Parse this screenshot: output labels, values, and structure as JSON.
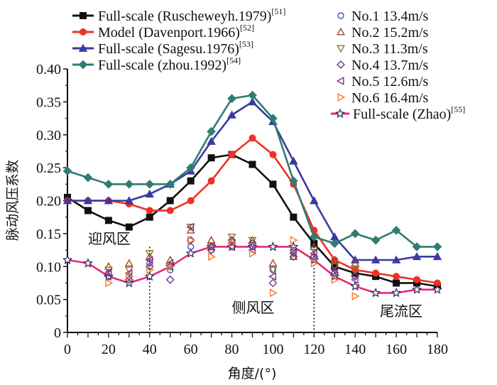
{
  "chart_data": {
    "type": "line",
    "title": "",
    "xlabel": "角度/(°)",
    "ylabel": "脉动风压系数",
    "xlim": [
      0,
      180
    ],
    "ylim": [
      0,
      0.4
    ],
    "xticks": [
      0,
      20,
      40,
      60,
      80,
      100,
      120,
      140,
      160,
      180
    ],
    "xtick_labels": [
      "0",
      "20",
      "40",
      "60",
      "80",
      "100",
      "120",
      "140",
      "160",
      "180"
    ],
    "yticks": [
      0,
      0.05,
      0.1,
      0.15,
      0.2,
      0.25,
      0.3,
      0.35,
      0.4
    ],
    "ytick_labels": [
      "0",
      "0.05",
      "0.10",
      "0.15",
      "0.20",
      "0.25",
      "0.30",
      "0.35",
      "0.40"
    ],
    "grid": false,
    "x": [
      0,
      10,
      20,
      30,
      40,
      50,
      60,
      70,
      80,
      90,
      100,
      110,
      120,
      130,
      140,
      150,
      160,
      170,
      180
    ],
    "series": [
      {
        "name": "Full-scale (Ruscheweyh.1979)",
        "ref": "[51]",
        "color": "#111111",
        "marker": "square",
        "values": [
          0.205,
          0.185,
          0.17,
          0.16,
          0.175,
          0.2,
          0.23,
          0.265,
          0.27,
          0.255,
          0.225,
          0.175,
          0.135,
          0.1,
          0.09,
          0.085,
          0.075,
          0.075,
          0.07
        ]
      },
      {
        "name": "Model (Davenport.1966)",
        "ref": "[52]",
        "color": "#ee3124",
        "marker": "circle",
        "values": [
          0.2,
          0.2,
          0.2,
          0.195,
          0.185,
          0.185,
          0.2,
          0.23,
          0.27,
          0.295,
          0.27,
          0.225,
          0.155,
          0.11,
          0.095,
          0.09,
          0.085,
          0.08,
          0.075
        ]
      },
      {
        "name": "Full-scale (Sagesu.1976)",
        "ref": "[53]",
        "color": "#3a3aa0",
        "marker": "triangle-up",
        "values": [
          0.2,
          0.2,
          0.2,
          0.2,
          0.21,
          0.225,
          0.245,
          0.29,
          0.33,
          0.35,
          0.32,
          0.26,
          0.2,
          0.145,
          0.11,
          0.11,
          0.11,
          0.115,
          0.115
        ]
      },
      {
        "name": "Full-scale (zhou.1992)",
        "ref": "[54]",
        "color": "#2e7d72",
        "marker": "diamond",
        "values": [
          0.245,
          0.235,
          0.225,
          0.225,
          0.225,
          0.225,
          0.25,
          0.305,
          0.355,
          0.36,
          0.325,
          0.23,
          0.145,
          0.135,
          0.15,
          0.14,
          0.155,
          0.13,
          0.13
        ]
      },
      {
        "name": "Full-scale (Zhao)",
        "ref": "[55]",
        "color": "#e8287a",
        "marker": "star",
        "values": [
          0.11,
          0.105,
          0.085,
          0.075,
          0.085,
          0.1,
          0.12,
          0.13,
          0.13,
          0.13,
          0.13,
          0.13,
          0.11,
          0.085,
          0.07,
          0.06,
          0.06,
          0.065,
          0.065
        ]
      }
    ],
    "scatter_series": [
      {
        "name": "No.1 13.4m/s",
        "color": "#4a4ac0",
        "marker": "circle-open",
        "points": [
          [
            20,
            0.09
          ],
          [
            30,
            0.085
          ],
          [
            40,
            0.105
          ],
          [
            50,
            0.095
          ],
          [
            60,
            0.13
          ],
          [
            70,
            0.125
          ],
          [
            80,
            0.13
          ],
          [
            90,
            0.13
          ],
          [
            100,
            0.095
          ],
          [
            110,
            0.125
          ],
          [
            120,
            0.115
          ],
          [
            130,
            0.09
          ],
          [
            140,
            0.085
          ]
        ]
      },
      {
        "name": "No.2 15.2m/s",
        "color": "#a0462a",
        "marker": "triangle-up-open",
        "points": [
          [
            20,
            0.1
          ],
          [
            30,
            0.105
          ],
          [
            40,
            0.115
          ],
          [
            50,
            0.11
          ],
          [
            60,
            0.155
          ],
          [
            70,
            0.14
          ],
          [
            80,
            0.14
          ],
          [
            90,
            0.14
          ],
          [
            100,
            0.105
          ],
          [
            110,
            0.115
          ],
          [
            120,
            0.13
          ],
          [
            130,
            0.11
          ],
          [
            140,
            0.105
          ]
        ]
      },
      {
        "name": "No.3 11.3m/s",
        "color": "#8a7a2a",
        "marker": "triangle-down-open",
        "points": [
          [
            20,
            0.095
          ],
          [
            30,
            0.095
          ],
          [
            40,
            0.12
          ],
          [
            50,
            0.1
          ],
          [
            60,
            0.16
          ],
          [
            70,
            0.13
          ],
          [
            80,
            0.145
          ],
          [
            90,
            0.14
          ],
          [
            100,
            0.095
          ],
          [
            110,
            0.12
          ],
          [
            120,
            0.125
          ],
          [
            130,
            0.1
          ],
          [
            140,
            0.095
          ]
        ]
      },
      {
        "name": "No.4 13.7m/s",
        "color": "#6a3a8a",
        "marker": "diamond-open",
        "points": [
          [
            20,
            0.085
          ],
          [
            30,
            0.08
          ],
          [
            40,
            0.1
          ],
          [
            50,
            0.08
          ],
          [
            60,
            0.14
          ],
          [
            70,
            0.125
          ],
          [
            80,
            0.14
          ],
          [
            90,
            0.135
          ],
          [
            100,
            0.075
          ],
          [
            110,
            0.115
          ],
          [
            120,
            0.115
          ],
          [
            130,
            0.09
          ],
          [
            140,
            0.085
          ]
        ]
      },
      {
        "name": "No.5 12.6m/s",
        "color": "#8a2a8a",
        "marker": "triangle-left-open",
        "points": [
          [
            20,
            0.09
          ],
          [
            30,
            0.09
          ],
          [
            40,
            0.11
          ],
          [
            50,
            0.105
          ],
          [
            60,
            0.16
          ],
          [
            70,
            0.13
          ],
          [
            80,
            0.13
          ],
          [
            90,
            0.125
          ],
          [
            100,
            0.085
          ],
          [
            110,
            0.12
          ],
          [
            120,
            0.12
          ],
          [
            130,
            0.095
          ],
          [
            140,
            0.08
          ]
        ]
      },
      {
        "name": "No.6 16.4m/s",
        "color": "#f07a2a",
        "marker": "triangle-right-open",
        "points": [
          [
            20,
            0.075
          ],
          [
            30,
            0.085
          ],
          [
            40,
            0.095
          ],
          [
            50,
            0.1
          ],
          [
            60,
            0.14
          ],
          [
            70,
            0.115
          ],
          [
            80,
            0.135
          ],
          [
            90,
            0.12
          ],
          [
            100,
            0.06
          ],
          [
            110,
            0.14
          ],
          [
            120,
            0.105
          ],
          [
            130,
            0.08
          ],
          [
            140,
            0.055
          ]
        ]
      }
    ],
    "region_dividers": [
      40,
      120
    ],
    "annotations": [
      {
        "text": "迎风区",
        "x": 10,
        "y": 0.135
      },
      {
        "text": "侧风区",
        "x": 80,
        "y": 0.03
      },
      {
        "text": "尾流区",
        "x": 152,
        "y": 0.025
      }
    ],
    "legend_placement": "top"
  }
}
